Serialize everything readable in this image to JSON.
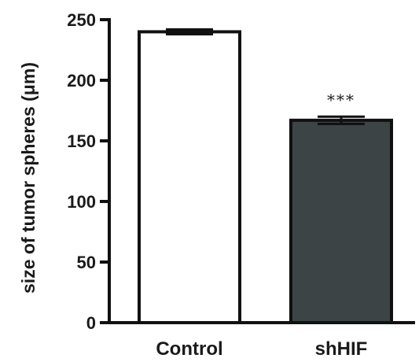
{
  "chart_data": {
    "type": "bar",
    "categories": [
      "Control",
      "shHIF"
    ],
    "values": [
      240,
      167
    ],
    "errors": [
      2,
      3
    ],
    "bar_colors": [
      "#ffffff",
      "#3c4446"
    ],
    "edge_color": "#111111",
    "ylabel": "size of tumor spheres (μm)",
    "ylim": [
      0,
      250
    ],
    "yticks": [
      0,
      50,
      100,
      150,
      200,
      250
    ],
    "annotations": [
      {
        "category": "shHIF",
        "text": "***"
      }
    ],
    "grid": false
  }
}
